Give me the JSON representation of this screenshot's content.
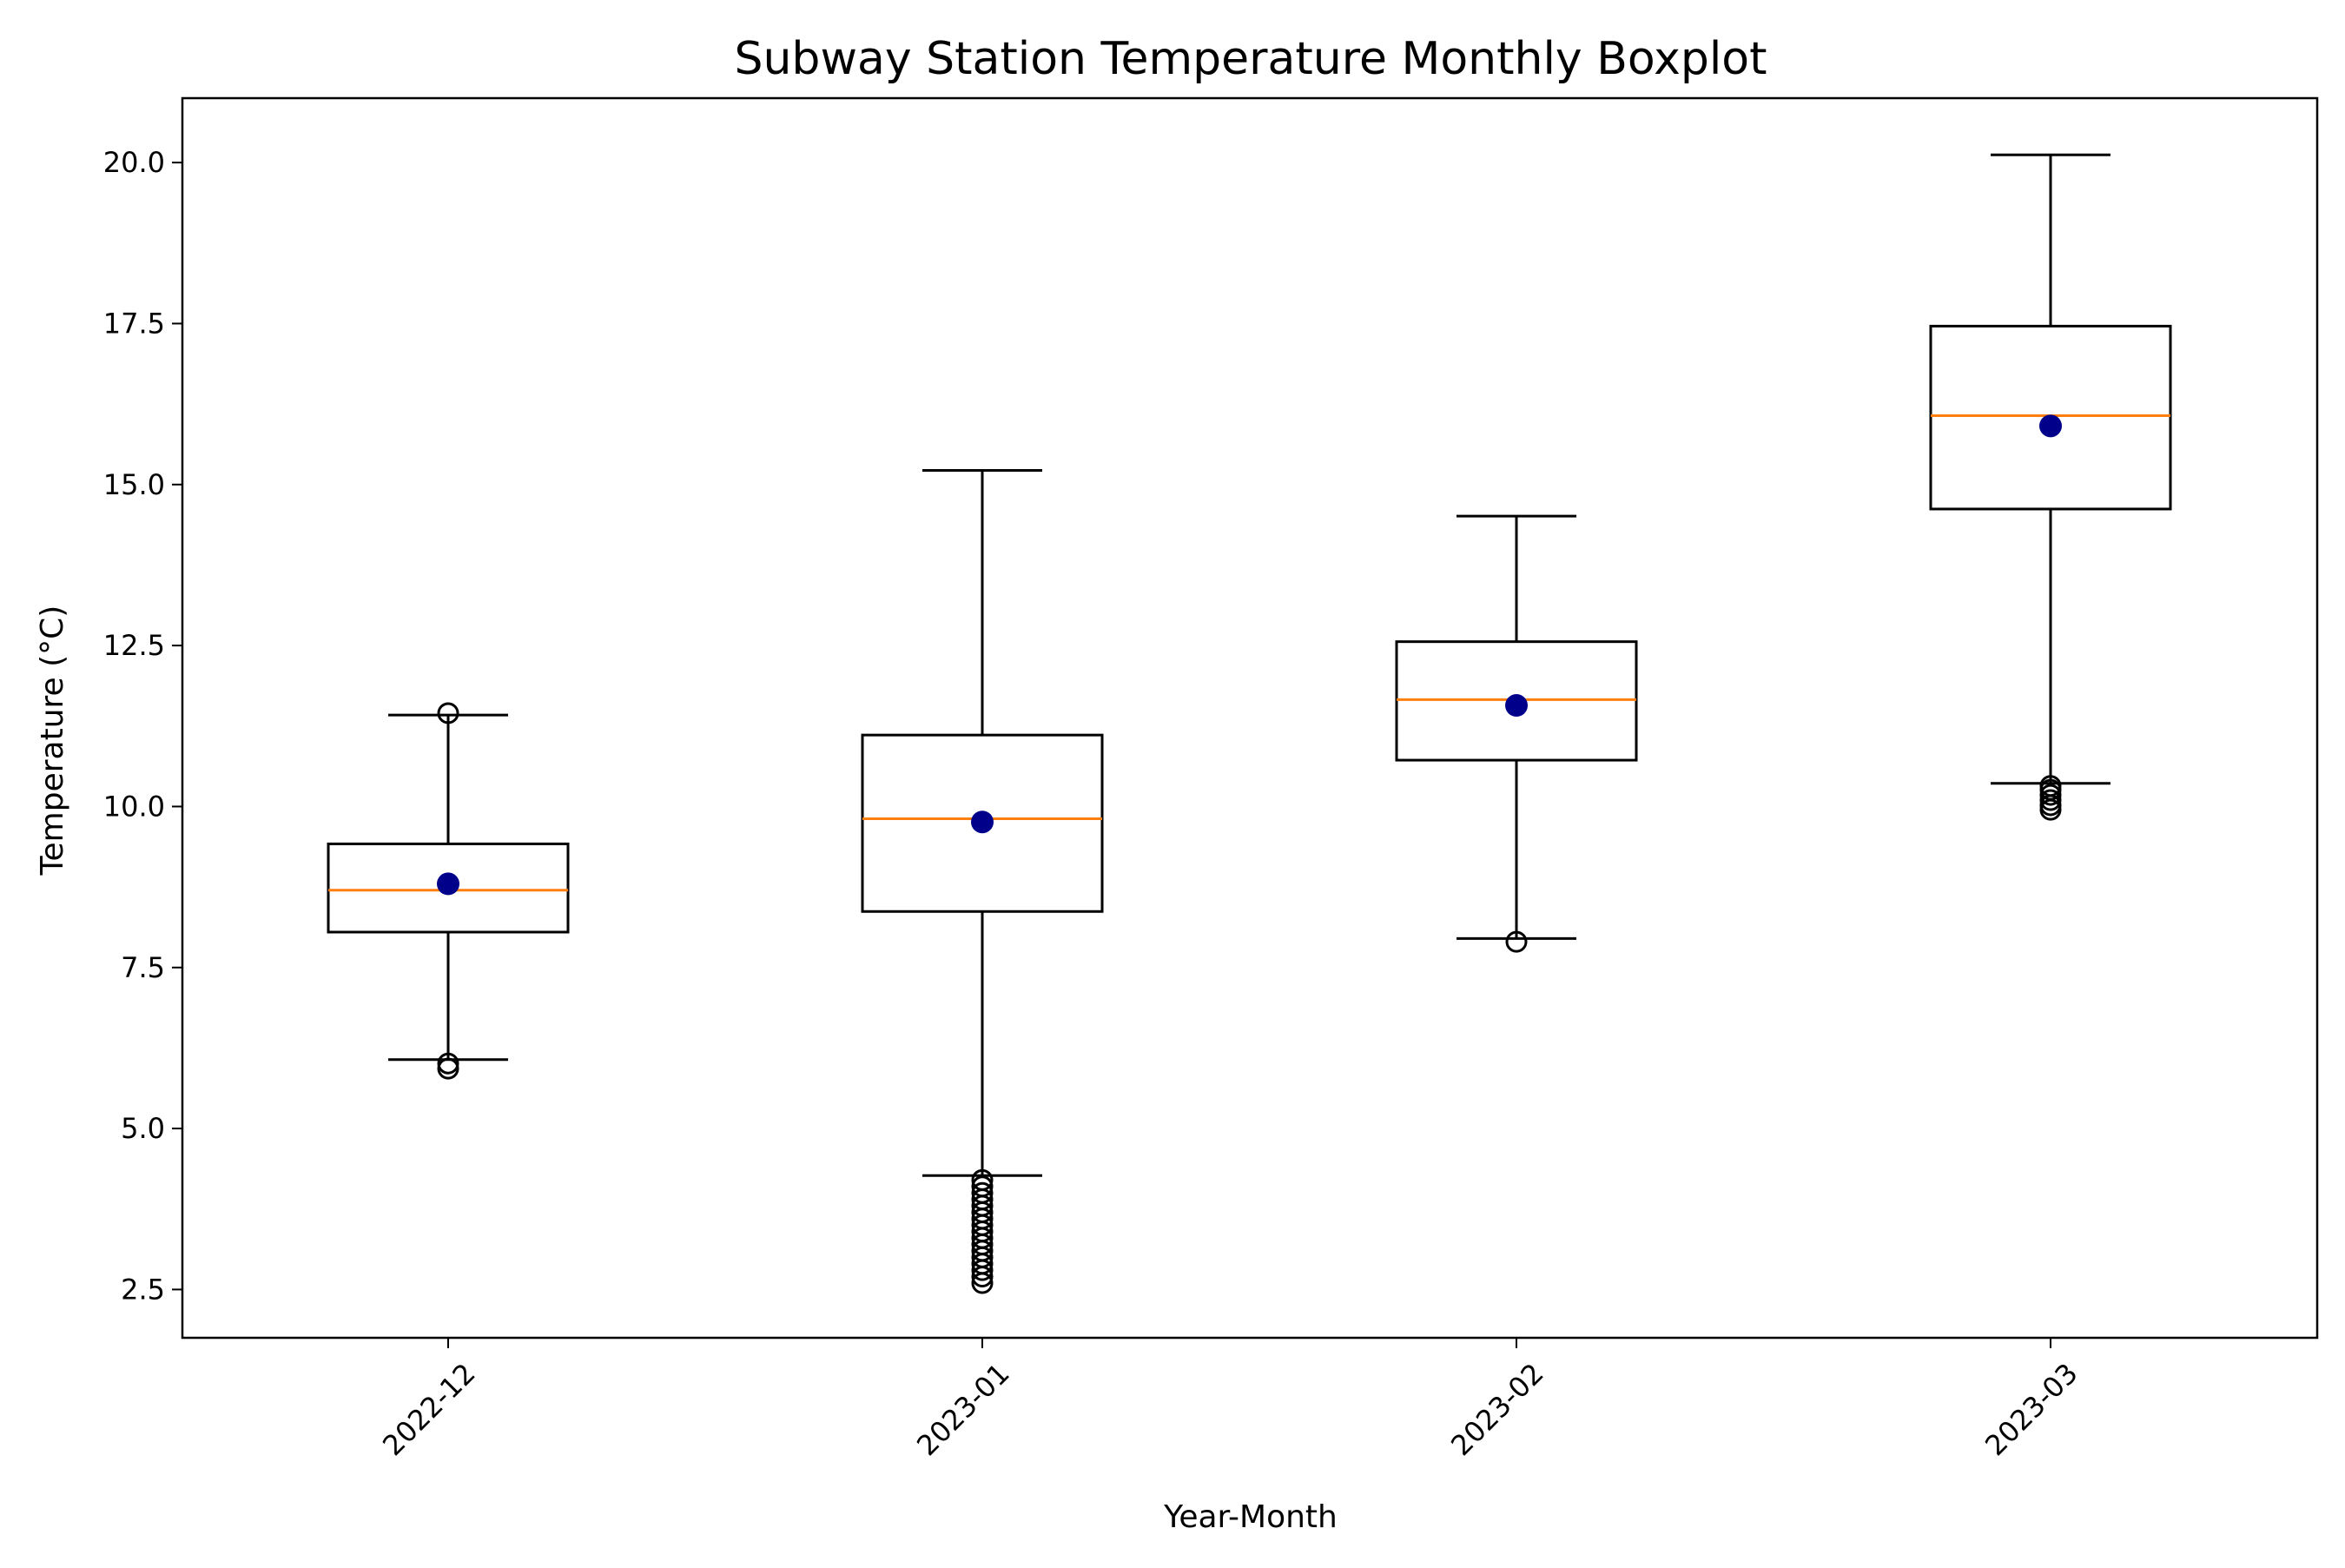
{
  "chart_data": {
    "type": "boxplot",
    "title": "Subway Station Temperature Monthly Boxplot",
    "xlabel": "Year-Month",
    "ylabel": "Temperature (°C)",
    "ylim": [
      1.75,
      21.0
    ],
    "yticks": [
      2.5,
      5.0,
      7.5,
      10.0,
      12.5,
      15.0,
      17.5,
      20.0
    ],
    "ytick_labels": [
      "2.5",
      "5.0",
      "7.5",
      "10.0",
      "12.5",
      "15.0",
      "17.5",
      "20.0"
    ],
    "x_tick_rotation_deg": 45,
    "grid": false,
    "categories": [
      "2022-12",
      "2023-01",
      "2023-02",
      "2023-03"
    ],
    "boxes": [
      {
        "category": "2022-12",
        "whisker_low": 6.07,
        "q1": 8.05,
        "median": 8.7,
        "q3": 9.42,
        "whisker_high": 11.42,
        "mean": 8.8,
        "outliers": [
          5.93,
          6.01,
          11.45
        ]
      },
      {
        "category": "2023-01",
        "whisker_low": 4.27,
        "q1": 8.37,
        "median": 9.81,
        "q3": 11.11,
        "whisker_high": 15.22,
        "mean": 9.76,
        "outliers": [
          2.6,
          2.7,
          2.8,
          2.9,
          3.0,
          3.1,
          3.2,
          3.3,
          3.4,
          3.5,
          3.6,
          3.7,
          3.8,
          3.9,
          4.0,
          4.1,
          4.2
        ]
      },
      {
        "category": "2023-02",
        "whisker_low": 7.95,
        "q1": 10.72,
        "median": 11.66,
        "q3": 12.56,
        "whisker_high": 14.51,
        "mean": 11.57,
        "outliers": [
          7.9
        ]
      },
      {
        "category": "2023-03",
        "whisker_low": 10.36,
        "q1": 14.62,
        "median": 16.07,
        "q3": 17.46,
        "whisker_high": 20.12,
        "mean": 15.91,
        "outliers": [
          9.95,
          10.02,
          10.1,
          10.18,
          10.26,
          10.32
        ]
      }
    ],
    "colors": {
      "box": "#000000",
      "median": "#ff7f0e",
      "mean": "#00008b",
      "outlier_edge": "#000000"
    }
  }
}
